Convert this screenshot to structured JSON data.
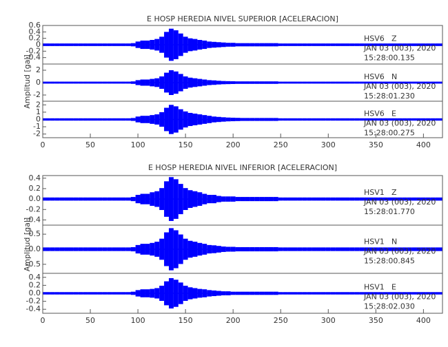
{
  "chart_data": [
    {
      "type": "seismogram",
      "title": "E HOSP HEREDIA NIVEL SUPERIOR [ACELERACION]",
      "ylabel": "Amplitud [gal]",
      "xlim": [
        0,
        420
      ],
      "xticks": [
        0,
        50,
        100,
        150,
        200,
        250,
        300,
        350,
        400
      ],
      "x": [
        0,
        5,
        10,
        15,
        20,
        25,
        30,
        35,
        40,
        45,
        50,
        55,
        60,
        65,
        70,
        75,
        80,
        85,
        90,
        95,
        100,
        105,
        110,
        115,
        120,
        125,
        130,
        135,
        140,
        145,
        150,
        155,
        160,
        165,
        170,
        175,
        180,
        185,
        190,
        195,
        200,
        205,
        210,
        215,
        220,
        225,
        230,
        235,
        240,
        245,
        250,
        255,
        260,
        265,
        270,
        275,
        280,
        285,
        290,
        295,
        300,
        305,
        310,
        315,
        320,
        325,
        330,
        335,
        340,
        345,
        350,
        355,
        360,
        365,
        370,
        375,
        380,
        385,
        390,
        395,
        400,
        405,
        410,
        415,
        420
      ],
      "traces": [
        {
          "station": "HSV6",
          "component": "Z",
          "date": "JAN 03 (003), 2020",
          "time": "15:28:00.135",
          "color": "#0000ff",
          "ylim": [
            -0.6,
            0.6
          ],
          "yticks": [
            -0.4,
            -0.2,
            0,
            0.2,
            0.4,
            0.6
          ],
          "values": [
            0.04,
            0.04,
            0.04,
            0.04,
            0.04,
            0.04,
            0.04,
            0.04,
            0.04,
            0.04,
            0.04,
            0.04,
            0.04,
            0.04,
            0.04,
            0.04,
            0.04,
            0.04,
            0.04,
            0.05,
            0.1,
            0.13,
            0.13,
            0.15,
            0.18,
            0.25,
            0.4,
            0.5,
            0.45,
            0.35,
            0.25,
            0.2,
            0.18,
            0.15,
            0.13,
            0.1,
            0.09,
            0.08,
            0.07,
            0.06,
            0.06,
            0.05,
            0.05,
            0.05,
            0.05,
            0.05,
            0.05,
            0.05,
            0.05,
            0.05,
            0.04,
            0.04,
            0.04,
            0.04,
            0.04,
            0.04,
            0.04,
            0.04,
            0.04,
            0.04,
            0.04,
            0.04,
            0.04,
            0.04,
            0.04,
            0.04,
            0.04,
            0.04,
            0.04,
            0.04,
            0.04,
            0.04,
            0.04,
            0.04,
            0.04,
            0.04,
            0.04,
            0.04,
            0.04,
            0.04,
            0.04,
            0.04,
            0.04,
            0.04,
            0.04
          ]
        },
        {
          "station": "HSV6",
          "component": "N",
          "date": "JAN 03 (003), 2020",
          "time": "15:28:01.230",
          "color": "#0000ff",
          "ylim": [
            -3,
            3
          ],
          "yticks": [
            -2,
            0,
            2
          ],
          "values": [
            0.16,
            0.16,
            0.16,
            0.16,
            0.16,
            0.16,
            0.16,
            0.16,
            0.16,
            0.16,
            0.16,
            0.16,
            0.16,
            0.16,
            0.16,
            0.16,
            0.16,
            0.16,
            0.16,
            0.2,
            0.4,
            0.5,
            0.5,
            0.6,
            0.7,
            1,
            1.6,
            2,
            1.8,
            1.4,
            1,
            0.8,
            0.7,
            0.6,
            0.5,
            0.4,
            0.36,
            0.3,
            0.26,
            0.24,
            0.22,
            0.2,
            0.2,
            0.2,
            0.2,
            0.2,
            0.2,
            0.2,
            0.2,
            0.2,
            0.16,
            0.16,
            0.16,
            0.16,
            0.16,
            0.16,
            0.16,
            0.16,
            0.16,
            0.16,
            0.16,
            0.16,
            0.16,
            0.16,
            0.16,
            0.16,
            0.16,
            0.16,
            0.16,
            0.16,
            0.16,
            0.16,
            0.16,
            0.16,
            0.16,
            0.16,
            0.16,
            0.16,
            0.16,
            0.16,
            0.16,
            0.16,
            0.16,
            0.16,
            0.16
          ]
        },
        {
          "station": "HSV6",
          "component": "E",
          "date": "JAN 03 (003), 2020",
          "time": "15:28:00.275",
          "color": "#0000ff",
          "ylim": [
            -2.5,
            2.5
          ],
          "yticks": [
            -2,
            -1,
            0,
            1,
            2
          ],
          "values": [
            0.16,
            0.16,
            0.16,
            0.16,
            0.16,
            0.16,
            0.16,
            0.16,
            0.16,
            0.16,
            0.16,
            0.16,
            0.16,
            0.16,
            0.16,
            0.16,
            0.16,
            0.16,
            0.16,
            0.2,
            0.4,
            0.5,
            0.5,
            0.6,
            0.7,
            1,
            1.6,
            2,
            1.8,
            1.4,
            1.1,
            0.9,
            0.8,
            0.7,
            0.6,
            0.5,
            0.4,
            0.35,
            0.3,
            0.26,
            0.24,
            0.22,
            0.2,
            0.2,
            0.2,
            0.2,
            0.2,
            0.2,
            0.2,
            0.2,
            0.16,
            0.16,
            0.16,
            0.16,
            0.16,
            0.16,
            0.16,
            0.16,
            0.16,
            0.16,
            0.16,
            0.16,
            0.16,
            0.16,
            0.16,
            0.16,
            0.16,
            0.16,
            0.16,
            0.16,
            0.16,
            0.16,
            0.16,
            0.16,
            0.16,
            0.16,
            0.16,
            0.16,
            0.16,
            0.16,
            0.16,
            0.16,
            0.16,
            0.16,
            0.16
          ]
        }
      ]
    },
    {
      "type": "seismogram",
      "title": "E HOSP HEREDIA NIVEL INFERIOR [ACELERACION]",
      "ylabel": "Amplitud [gal]",
      "xlim": [
        0,
        420
      ],
      "xticks": [
        0,
        50,
        100,
        150,
        200,
        250,
        300,
        350,
        400
      ],
      "x": [
        0,
        5,
        10,
        15,
        20,
        25,
        30,
        35,
        40,
        45,
        50,
        55,
        60,
        65,
        70,
        75,
        80,
        85,
        90,
        95,
        100,
        105,
        110,
        115,
        120,
        125,
        130,
        135,
        140,
        145,
        150,
        155,
        160,
        165,
        170,
        175,
        180,
        185,
        190,
        195,
        200,
        205,
        210,
        215,
        220,
        225,
        230,
        235,
        240,
        245,
        250,
        255,
        260,
        265,
        270,
        275,
        280,
        285,
        290,
        295,
        300,
        305,
        310,
        315,
        320,
        325,
        330,
        335,
        340,
        345,
        350,
        355,
        360,
        365,
        370,
        375,
        380,
        385,
        390,
        395,
        400,
        405,
        410,
        415,
        420
      ],
      "traces": [
        {
          "station": "HSV1",
          "component": "Z",
          "date": "JAN 03 (003), 2020",
          "time": "15:28:01.770",
          "color": "#0000ff",
          "ylim": [
            -0.5,
            0.45
          ],
          "yticks": [
            {
              "value": -0.4,
              "label": "-0.4"
            },
            {
              "value": -0.2,
              "label": "-0.2"
            },
            {
              "value": 0,
              "label": "0.0"
            },
            0.2,
            0.4
          ],
          "values": [
            0.03,
            0.03,
            0.03,
            0.03,
            0.03,
            0.03,
            0.03,
            0.03,
            0.03,
            0.03,
            0.03,
            0.03,
            0.03,
            0.03,
            0.03,
            0.03,
            0.03,
            0.03,
            0.03,
            0.04,
            0.08,
            0.1,
            0.1,
            0.13,
            0.15,
            0.21,
            0.34,
            0.42,
            0.38,
            0.29,
            0.21,
            0.17,
            0.15,
            0.13,
            0.1,
            0.08,
            0.08,
            0.06,
            0.05,
            0.05,
            0.05,
            0.04,
            0.04,
            0.04,
            0.04,
            0.04,
            0.04,
            0.04,
            0.04,
            0.04,
            0.03,
            0.03,
            0.03,
            0.03,
            0.03,
            0.03,
            0.03,
            0.03,
            0.03,
            0.03,
            0.03,
            0.03,
            0.03,
            0.03,
            0.03,
            0.03,
            0.03,
            0.03,
            0.03,
            0.03,
            0.03,
            0.03,
            0.03,
            0.03,
            0.03,
            0.03,
            0.03,
            0.03,
            0.03,
            0.03,
            0.03,
            0.03,
            0.03,
            0.03,
            0.03
          ]
        },
        {
          "station": "HSV1",
          "component": "N",
          "date": "JAN 03 (003), 2020",
          "time": "15:28:00.845",
          "color": "#0000ff",
          "ylim": [
            -0.8,
            0.8
          ],
          "yticks": [
            -0.5,
            {
              "value": 0,
              "label": "0.0"
            },
            0.5
          ],
          "values": [
            0.06,
            0.06,
            0.06,
            0.06,
            0.06,
            0.06,
            0.06,
            0.06,
            0.06,
            0.06,
            0.06,
            0.06,
            0.06,
            0.06,
            0.06,
            0.06,
            0.06,
            0.06,
            0.06,
            0.07,
            0.14,
            0.18,
            0.18,
            0.21,
            0.25,
            0.35,
            0.56,
            0.7,
            0.63,
            0.49,
            0.35,
            0.28,
            0.25,
            0.21,
            0.18,
            0.14,
            0.13,
            0.11,
            0.09,
            0.08,
            0.08,
            0.07,
            0.07,
            0.07,
            0.07,
            0.07,
            0.07,
            0.07,
            0.07,
            0.07,
            0.06,
            0.06,
            0.06,
            0.06,
            0.06,
            0.06,
            0.06,
            0.06,
            0.06,
            0.06,
            0.06,
            0.06,
            0.06,
            0.06,
            0.06,
            0.06,
            0.06,
            0.06,
            0.06,
            0.06,
            0.06,
            0.06,
            0.06,
            0.06,
            0.06,
            0.06,
            0.06,
            0.06,
            0.06,
            0.06,
            0.06,
            0.06,
            0.06,
            0.06,
            0.06
          ]
        },
        {
          "station": "HSV1",
          "component": "E",
          "date": "JAN 03 (003), 2020",
          "time": "15:28:02.030",
          "color": "#0000ff",
          "ylim": [
            -0.5,
            0.5
          ],
          "yticks": [
            -0.4,
            -0.2,
            {
              "value": 0,
              "label": "0.0"
            },
            0.2,
            0.4
          ],
          "values": [
            0.03,
            0.03,
            0.03,
            0.03,
            0.03,
            0.03,
            0.03,
            0.03,
            0.03,
            0.03,
            0.03,
            0.03,
            0.03,
            0.03,
            0.03,
            0.03,
            0.03,
            0.03,
            0.03,
            0.04,
            0.08,
            0.1,
            0.1,
            0.11,
            0.13,
            0.19,
            0.3,
            0.38,
            0.34,
            0.27,
            0.19,
            0.15,
            0.13,
            0.11,
            0.1,
            0.08,
            0.07,
            0.06,
            0.05,
            0.05,
            0.04,
            0.04,
            0.04,
            0.04,
            0.04,
            0.04,
            0.04,
            0.04,
            0.04,
            0.04,
            0.03,
            0.03,
            0.03,
            0.03,
            0.03,
            0.03,
            0.03,
            0.03,
            0.03,
            0.03,
            0.03,
            0.03,
            0.03,
            0.03,
            0.03,
            0.03,
            0.03,
            0.03,
            0.03,
            0.03,
            0.03,
            0.03,
            0.03,
            0.03,
            0.03,
            0.03,
            0.03,
            0.03,
            0.03,
            0.03,
            0.03,
            0.03,
            0.03,
            0.03,
            0.03
          ]
        }
      ]
    }
  ]
}
